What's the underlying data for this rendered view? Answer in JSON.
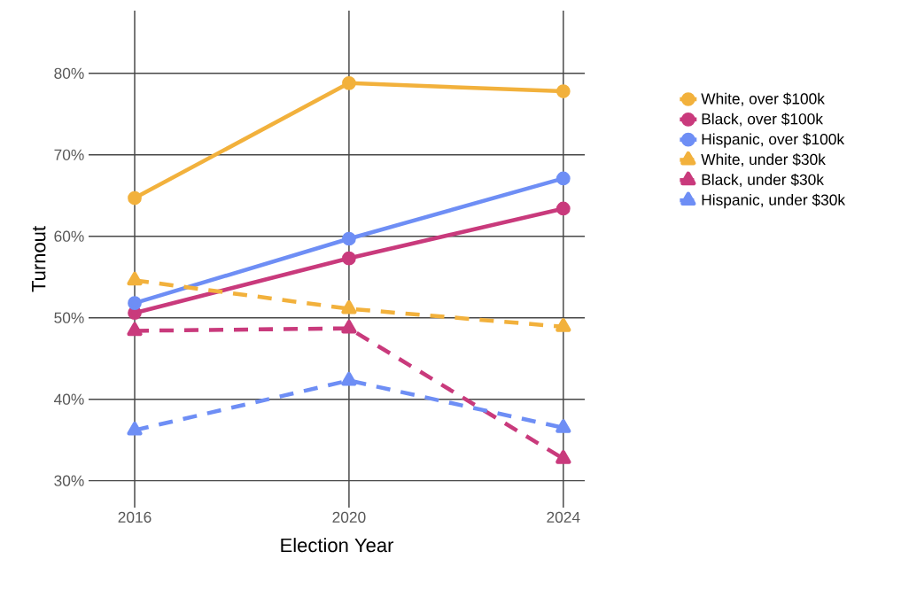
{
  "chart_data": {
    "type": "line",
    "xlabel": "Election Year",
    "ylabel": "Turnout",
    "x": [
      2016,
      2020,
      2024
    ],
    "xlim": [
      2015.14,
      2024.4
    ],
    "xticks": [
      2016,
      2020,
      2024
    ],
    "ylim": [
      26.7,
      87.7
    ],
    "yticks": [
      {
        "value": 30,
        "label": "30%"
      },
      {
        "value": 40,
        "label": "40%"
      },
      {
        "value": 50,
        "label": "50%"
      },
      {
        "value": 60,
        "label": "60%"
      },
      {
        "value": 70,
        "label": "70%"
      },
      {
        "value": 80,
        "label": "80%"
      }
    ],
    "grid": true,
    "legend": "right",
    "series": [
      {
        "name": "White, over $100k",
        "color": "#f2b13c",
        "marker": "circle",
        "line_style": "solid",
        "values": [
          64.7,
          78.8,
          77.8
        ]
      },
      {
        "name": "Black, over $100k",
        "color": "#c93a7c",
        "marker": "circle",
        "line_style": "solid",
        "values": [
          50.6,
          57.3,
          63.4
        ]
      },
      {
        "name": "Hispanic, over $100k",
        "color": "#6e8ef5",
        "marker": "circle",
        "line_style": "solid",
        "values": [
          51.8,
          59.7,
          67.1
        ]
      },
      {
        "name": "White, under $30k",
        "color": "#f2b13c",
        "marker": "triangle",
        "line_style": "dashed",
        "values": [
          54.6,
          51.1,
          48.9
        ]
      },
      {
        "name": "Black, under $30k",
        "color": "#c93a7c",
        "marker": "triangle",
        "line_style": "dashed",
        "values": [
          48.4,
          48.7,
          32.7
        ]
      },
      {
        "name": "Hispanic, under $30k",
        "color": "#6e8ef5",
        "marker": "triangle",
        "line_style": "dashed",
        "values": [
          36.2,
          42.3,
          36.5
        ]
      }
    ]
  }
}
